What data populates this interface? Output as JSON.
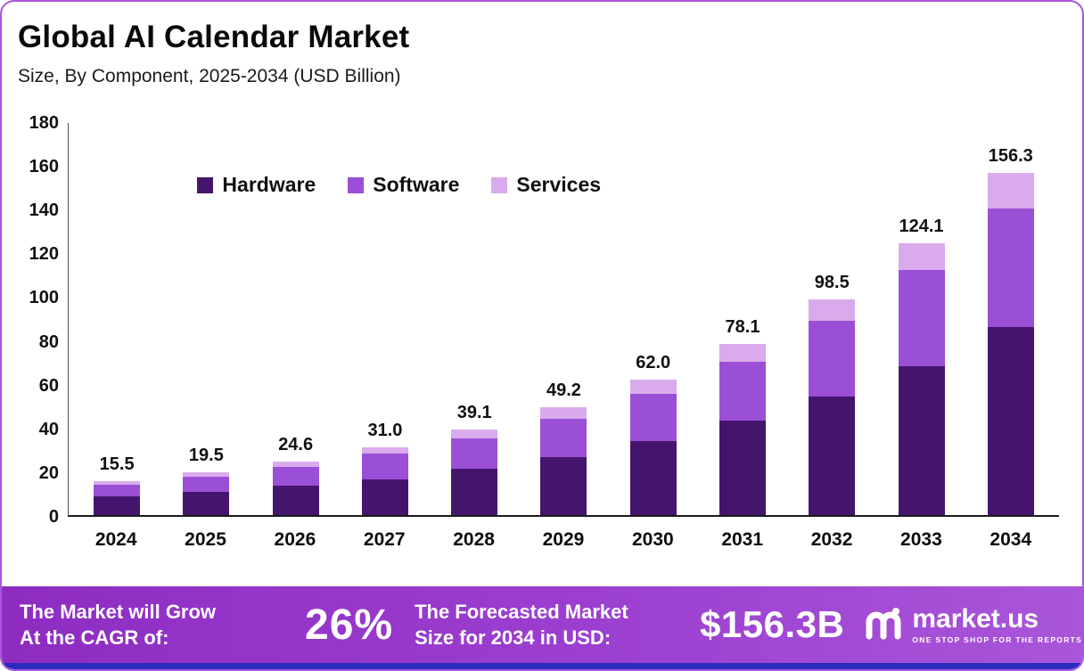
{
  "header": {
    "title": "Global AI Calendar Market",
    "subtitle": "Size, By Component, 2025-2034 (USD Billion)"
  },
  "chart_data": {
    "type": "bar",
    "stacked": true,
    "title": "Global AI Calendar Market",
    "subtitle": "Size, By Component, 2025-2034 (USD Billion)",
    "unit": "USD Billion",
    "categories": [
      "2024",
      "2025",
      "2026",
      "2027",
      "2028",
      "2029",
      "2030",
      "2031",
      "2032",
      "2033",
      "2034"
    ],
    "series": [
      {
        "name": "Hardware",
        "color": "#45156e",
        "values": [
          8.5,
          10.5,
          13.5,
          16.5,
          21.0,
          26.5,
          34.0,
          43.0,
          54.0,
          68.0,
          86.0
        ]
      },
      {
        "name": "Software",
        "color": "#9b4fd6",
        "values": [
          5.5,
          7.0,
          8.5,
          11.5,
          14.0,
          17.5,
          21.5,
          27.0,
          35.0,
          44.0,
          54.0
        ]
      },
      {
        "name": "Services",
        "color": "#d9abec",
        "values": [
          1.5,
          2.0,
          2.6,
          3.0,
          4.1,
          5.2,
          6.5,
          8.1,
          9.5,
          12.1,
          16.3
        ]
      }
    ],
    "totals": [
      "15.5",
      "19.5",
      "24.6",
      "31.0",
      "39.1",
      "49.2",
      "62.0",
      "78.1",
      "98.5",
      "124.1",
      "156.3"
    ],
    "ylim": [
      0,
      180
    ],
    "yticks": [
      0,
      20,
      40,
      60,
      80,
      100,
      120,
      140,
      160,
      180
    ],
    "legend_position": "top-left-inside",
    "grid": false
  },
  "footer": {
    "left_line1": "The Market will Grow",
    "left_line2": "At the CAGR of:",
    "cagr": "26%",
    "forecast_line1": "The Forecasted Market",
    "forecast_line2": "Size for 2034 in USD:",
    "forecast_value": "$156.3B",
    "logo_text": "market.us",
    "logo_tagline": "One Stop Shop for the Reports"
  },
  "colors": {
    "border": "#a855dc",
    "footer_gradient_start": "#8e2cc2",
    "footer_gradient_end": "#a955d9",
    "bottom_strip": "#2b2bbf"
  }
}
